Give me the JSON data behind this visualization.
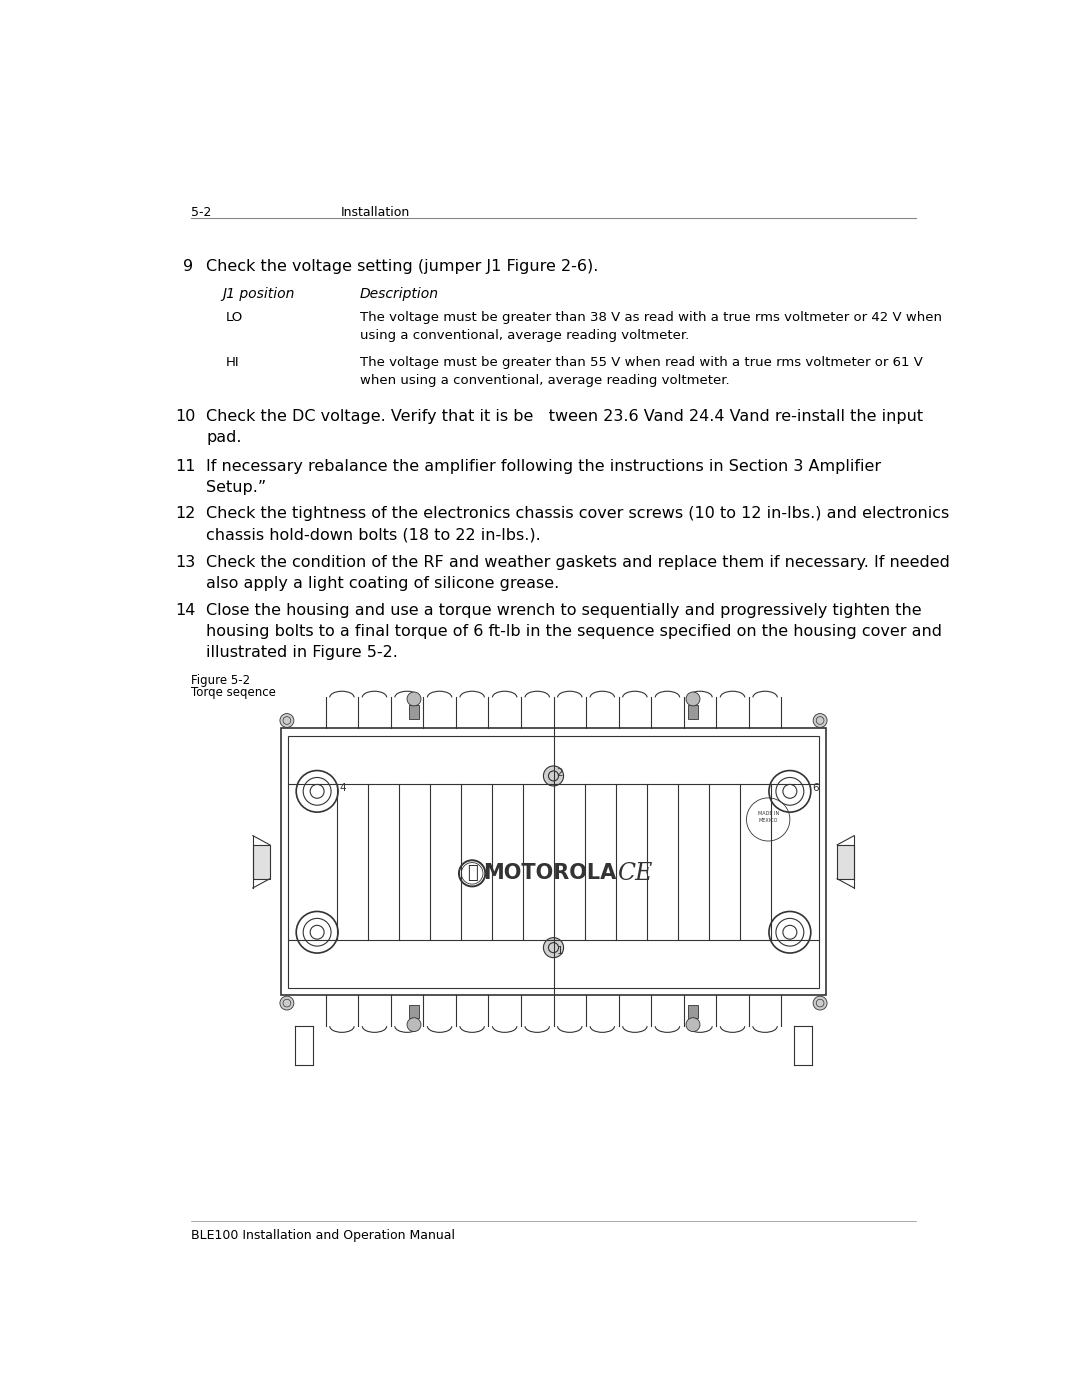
{
  "page_header_left": "5-2",
  "page_header_right": "Installation",
  "page_footer": "BLE100 Installation and Operation Manual",
  "step9_num": "9",
  "step9_text": "Check the voltage setting (jumper J1 Figure 2-6).",
  "table_header_col1": "J1 position",
  "table_header_col2": "Description",
  "table_row1_col1": "LO",
  "table_row1_col2": "The voltage must be greater than 38 V as read with a true rms voltmeter or 42 V when\nusing a conventional, average reading voltmeter.",
  "table_row2_col1": "HI",
  "table_row2_col2": "The voltage must be greater than 55 V when read with a true rms voltmeter or 61 V\nwhen using a conventional, average reading voltmeter.",
  "step10_num": "10",
  "step10_text": "Check the DC voltage. Verify that it is be   tween 23.6 Vand 24.4 Vand re-install the input\npad.",
  "step11_num": "11",
  "step11_text": "If necessary rebalance the amplifier following the instructions in Section 3 Amplifier\nSetup.”",
  "step12_num": "12",
  "step12_text": "Check the tightness of the electronics chassis cover screws (10 to 12 in-lbs.) and electronics\nchassis hold-down bolts (18 to 22 in-lbs.).",
  "step13_num": "13",
  "step13_text": "Check the condition of the RF and weather gaskets and replace them if necessary. If needed\nalso apply a light coating of silicone grease.",
  "step14_num": "14",
  "step14_text": "Close the housing and use a torque wrench to sequentially and progressively tighten the\nhousing bolts to a final torque of 6 ft-lb in the sequence specified on the housing cover and\nillustrated in Figure 5-2.",
  "figure_label": "Figure 5-2",
  "figure_caption": "Torqe seqence",
  "bg_color": "#ffffff",
  "text_color": "#000000",
  "line_color": "#333333",
  "header_line_color": "#888888"
}
